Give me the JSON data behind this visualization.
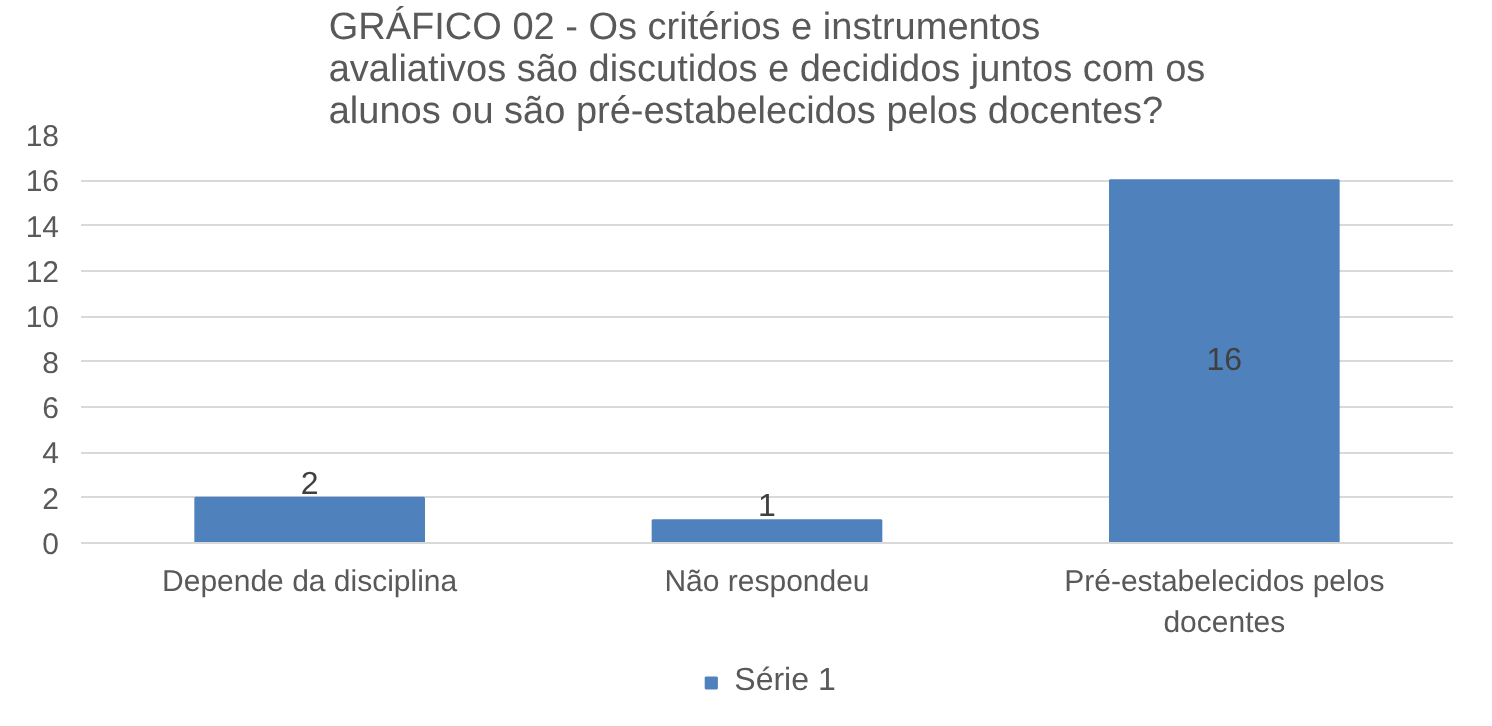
{
  "chart_data": {
    "type": "bar",
    "title": "GRÁFICO 02 - Os critérios e instrumentos\navaliativos são discutidos e decididos juntos com os\nalunos ou são pré-estabelecidos pelos docentes?",
    "categories": [
      "Depende da disciplina",
      "Não respondeu",
      "Pré-estabelecidos pelos docentes"
    ],
    "series": [
      {
        "name": "Série 1",
        "color": "#4f81bd",
        "values": [
          2,
          1,
          16
        ]
      }
    ],
    "ylim": [
      0,
      18
    ],
    "yticks": [
      0,
      2,
      4,
      6,
      8,
      10,
      12,
      14,
      16,
      18
    ],
    "grid": "y",
    "legend": "bottom",
    "data_labels": true
  }
}
